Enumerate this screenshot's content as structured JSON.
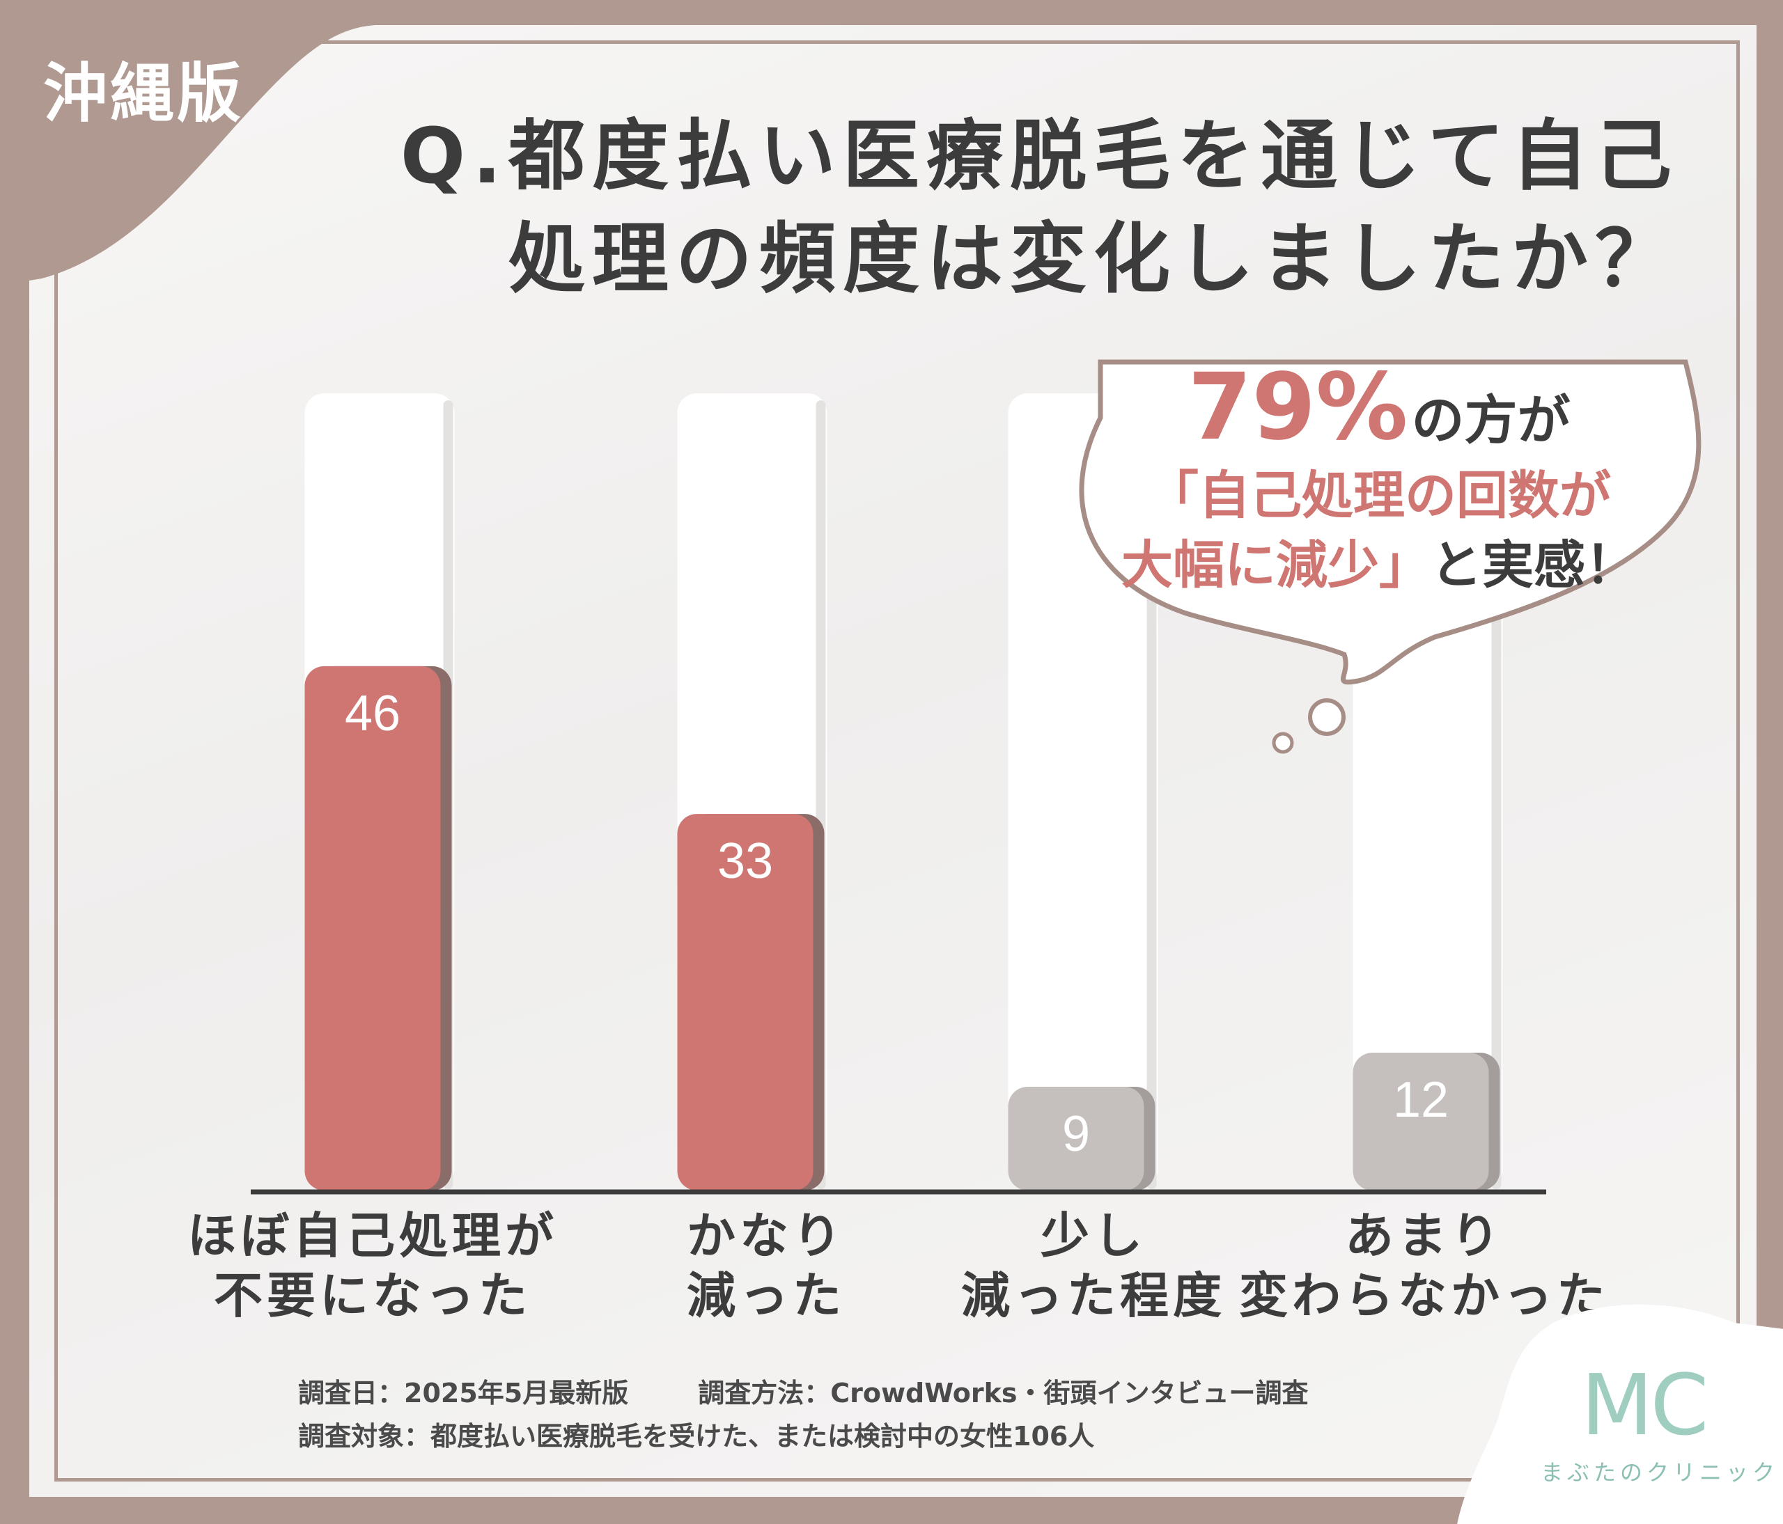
{
  "region_label": "沖縄版",
  "question": {
    "line1": "Q.都度払い医療脱毛を通じて自己",
    "line2": "処理の頻度は変化しましたか？"
  },
  "callout": {
    "percent": "79%",
    "percent_suffix": "の方が",
    "line2": "「自己処理の回数が",
    "line3_accent": "大幅に減少」",
    "line3_rest": "と実感！"
  },
  "chart_data": {
    "type": "bar",
    "title": "Q.都度払い医療脱毛を通じて自己処理の頻度は変化しましたか？",
    "categories": [
      {
        "line1": "ほぼ自己処理が",
        "line2": "不要になった"
      },
      {
        "line1": "かなり",
        "line2": "減った"
      },
      {
        "line1": "少し",
        "line2": "減った程度"
      },
      {
        "line1": "あまり",
        "line2": "変わらなかった"
      }
    ],
    "values": [
      46,
      33,
      9,
      12
    ],
    "ylim": [
      0,
      70
    ],
    "grid": false,
    "colors": {
      "highlight": "#cf7672",
      "highlight_shadow": "#8a6c68",
      "muted": "#c5c0bd",
      "muted_shadow": "#a39e9b"
    },
    "highlighted": [
      true,
      true,
      false,
      false
    ]
  },
  "footnotes": {
    "date": "調査日：2025年5月最新版",
    "method": "調査方法：CrowdWorks・街頭インタビュー調査",
    "target": "調査対象：都度払い医療脱毛を受けた、または検討中の女性106人"
  },
  "logo": {
    "mark": "MC",
    "name": "まぶたのクリニック"
  },
  "colors": {
    "frame": "#b09990",
    "text": "#3c3c3c",
    "accent": "#cf7672",
    "logo": "#9fcdbf"
  }
}
